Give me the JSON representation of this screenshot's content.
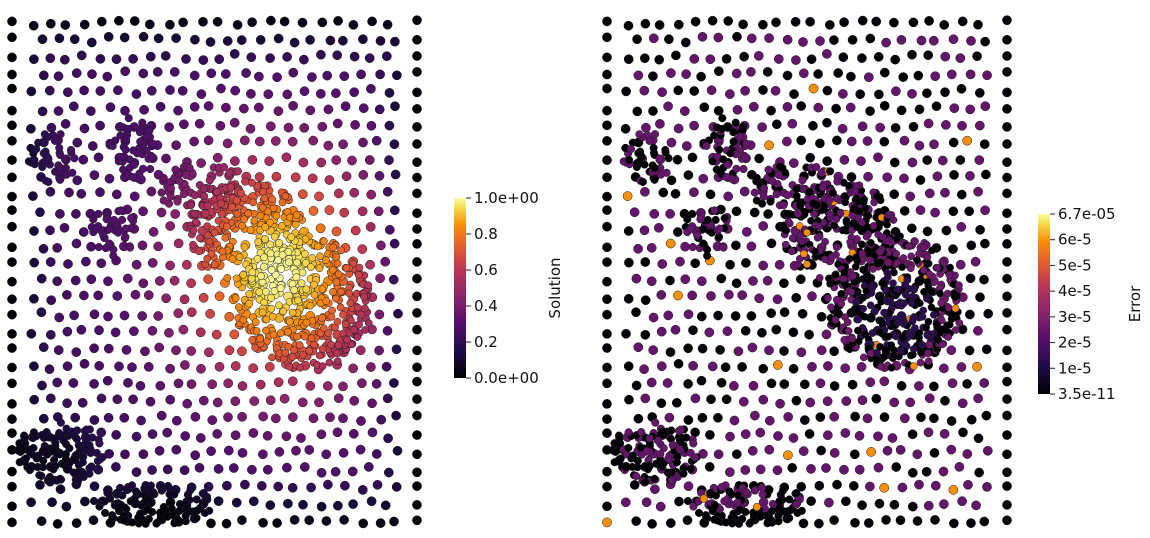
{
  "chart_data": [
    {
      "type": "scatter",
      "title": "",
      "colormap": "inferno",
      "colorbar": {
        "label": "Solution",
        "min_label": "0.0e+00",
        "max_label": "1.0e+00",
        "ticks": [
          "0.2",
          "0.4",
          "0.6",
          "0.8"
        ],
        "range": [
          0,
          1
        ]
      },
      "field": "solution"
    },
    {
      "type": "scatter",
      "title": "",
      "colormap": "inferno",
      "colorbar": {
        "label": "Error",
        "min_label": "3.5e-11",
        "max_label": "6.7e-05",
        "ticks": [
          "1e-5",
          "2e-5",
          "3e-5",
          "4e-5",
          "5e-5",
          "6e-5"
        ],
        "range": [
          3.5e-11,
          6.7e-05
        ]
      },
      "field": "error"
    }
  ]
}
